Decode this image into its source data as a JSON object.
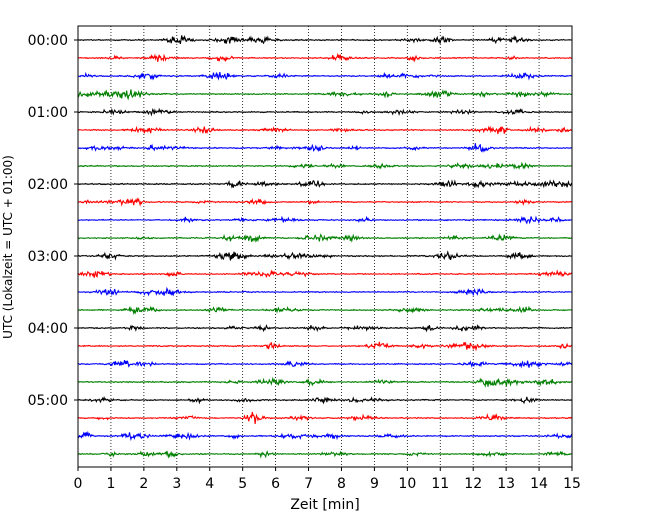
{
  "chart_data": {
    "type": "line",
    "title": "",
    "xlabel": "Zeit  [min]",
    "ylabel": "UTC (Lokalzeit = UTC + 01:00)",
    "xlim": [
      0,
      15
    ],
    "x_ticks": [
      "0",
      "1",
      "2",
      "3",
      "4",
      "5",
      "6",
      "7",
      "8",
      "9",
      "10",
      "11",
      "12",
      "13",
      "14",
      "15"
    ],
    "y_hour_labels": [
      "00:00",
      "01:00",
      "02:00",
      "03:00",
      "04:00",
      "05:00"
    ],
    "rows": 24,
    "row_minutes": 15,
    "trace_colors": [
      "#000000",
      "#ff0000",
      "#0000ff",
      "#008000"
    ],
    "grid": "vertical dotted",
    "legend": "none"
  }
}
